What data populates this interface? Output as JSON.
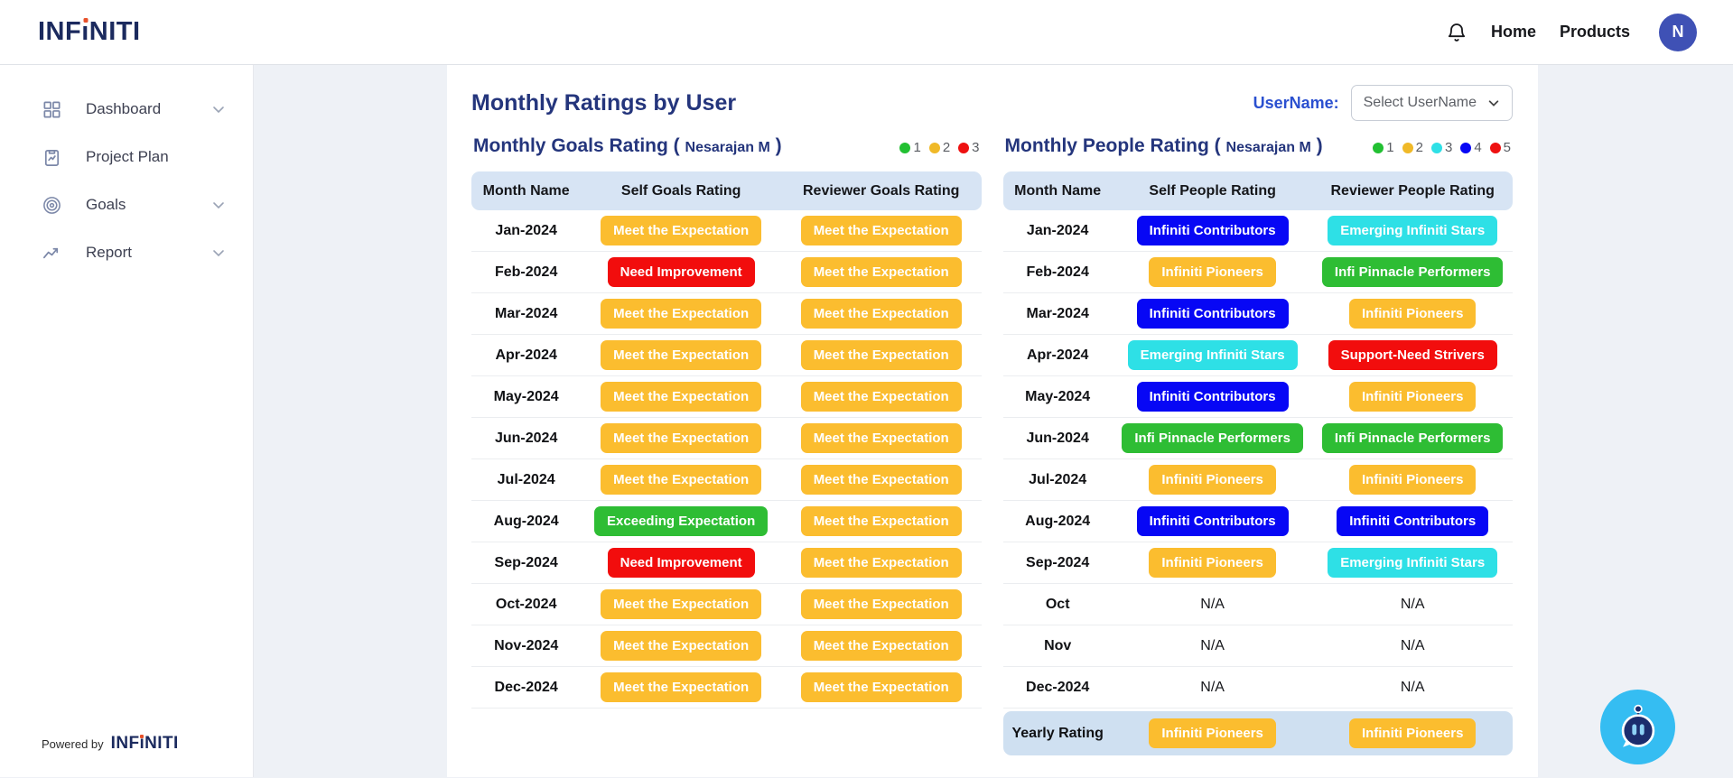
{
  "header": {
    "logo_pre": "INF",
    "logo_i": "ı",
    "logo_post": "NITI",
    "nav": [
      {
        "label": "Home"
      },
      {
        "label": "Products"
      }
    ],
    "avatar_initial": "N"
  },
  "sidebar": {
    "items": [
      {
        "label": "Dashboard",
        "icon": "dashboard-grid-icon",
        "has_chevron": true
      },
      {
        "label": "Project Plan",
        "icon": "project-plan-clipboard-icon",
        "has_chevron": false
      },
      {
        "label": "Goals",
        "icon": "goals-target-icon",
        "has_chevron": true
      },
      {
        "label": "Report",
        "icon": "report-trend-icon",
        "has_chevron": true
      }
    ],
    "footer": {
      "powered_by": "Powered by",
      "brand_pre": "INF",
      "brand_i": "ı",
      "brand_post": "NITI"
    }
  },
  "page": {
    "title": "Monthly Ratings by User",
    "username_label": "UserName:",
    "username_selected": "Select UserName"
  },
  "badge_colors": {
    "Meet the Expectation": "#fbbd2f",
    "Need Improvement": "#f20d0d",
    "Exceeding Expectation": "#2ebd34",
    "Infiniti Contributors": "#0707f5",
    "Emerging Infiniti Stars": "#2ee0e6",
    "Infiniti Pioneers": "#fbbd2f",
    "Infi Pinnacle Performers": "#2ebd34",
    "Support-Need Strivers": "#f20d0d"
  },
  "goals_table": {
    "title_open": "Monthly Goals Rating (",
    "user": "Nesarajan M",
    "title_close": ")",
    "legend": [
      {
        "color": "#22c032",
        "label": "1"
      },
      {
        "color": "#f0b928",
        "label": "2"
      },
      {
        "color": "#ee1111",
        "label": "3"
      }
    ],
    "columns": [
      "Month Name",
      "Self Goals Rating",
      "Reviewer Goals Rating"
    ],
    "rows": [
      {
        "month": "Jan-2024",
        "self": "Meet the Expectation",
        "reviewer": "Meet the Expectation"
      },
      {
        "month": "Feb-2024",
        "self": "Need Improvement",
        "reviewer": "Meet the Expectation"
      },
      {
        "month": "Mar-2024",
        "self": "Meet the Expectation",
        "reviewer": "Meet the Expectation"
      },
      {
        "month": "Apr-2024",
        "self": "Meet the Expectation",
        "reviewer": "Meet the Expectation"
      },
      {
        "month": "May-2024",
        "self": "Meet the Expectation",
        "reviewer": "Meet the Expectation"
      },
      {
        "month": "Jun-2024",
        "self": "Meet the Expectation",
        "reviewer": "Meet the Expectation"
      },
      {
        "month": "Jul-2024",
        "self": "Meet the Expectation",
        "reviewer": "Meet the Expectation"
      },
      {
        "month": "Aug-2024",
        "self": "Exceeding Expectation",
        "reviewer": "Meet the Expectation"
      },
      {
        "month": "Sep-2024",
        "self": "Need Improvement",
        "reviewer": "Meet the Expectation"
      },
      {
        "month": "Oct-2024",
        "self": "Meet the Expectation",
        "reviewer": "Meet the Expectation"
      },
      {
        "month": "Nov-2024",
        "self": "Meet the Expectation",
        "reviewer": "Meet the Expectation"
      },
      {
        "month": "Dec-2024",
        "self": "Meet the Expectation",
        "reviewer": "Meet the Expectation"
      }
    ]
  },
  "people_table": {
    "title_open": "Monthly People Rating (",
    "user": "Nesarajan M",
    "title_close": ")",
    "legend": [
      {
        "color": "#22c032",
        "label": "1"
      },
      {
        "color": "#f0b928",
        "label": "2"
      },
      {
        "color": "#2ee0e6",
        "label": "3"
      },
      {
        "color": "#0707f5",
        "label": "4"
      },
      {
        "color": "#ee1111",
        "label": "5"
      }
    ],
    "columns": [
      "Month Name",
      "Self People Rating",
      "Reviewer People Rating"
    ],
    "rows": [
      {
        "month": "Jan-2024",
        "self": "Infiniti Contributors",
        "reviewer": "Emerging Infiniti Stars"
      },
      {
        "month": "Feb-2024",
        "self": "Infiniti Pioneers",
        "reviewer": "Infi Pinnacle Performers"
      },
      {
        "month": "Mar-2024",
        "self": "Infiniti Contributors",
        "reviewer": "Infiniti Pioneers"
      },
      {
        "month": "Apr-2024",
        "self": "Emerging Infiniti Stars",
        "reviewer": "Support-Need Strivers"
      },
      {
        "month": "May-2024",
        "self": "Infiniti Contributors",
        "reviewer": "Infiniti Pioneers"
      },
      {
        "month": "Jun-2024",
        "self": "Infi Pinnacle Performers",
        "reviewer": "Infi Pinnacle Performers"
      },
      {
        "month": "Jul-2024",
        "self": "Infiniti Pioneers",
        "reviewer": "Infiniti Pioneers"
      },
      {
        "month": "Aug-2024",
        "self": "Infiniti Contributors",
        "reviewer": "Infiniti Contributors"
      },
      {
        "month": "Sep-2024",
        "self": "Infiniti Pioneers",
        "reviewer": "Emerging Infiniti Stars"
      },
      {
        "month": "Oct",
        "self": "N/A",
        "reviewer": "N/A"
      },
      {
        "month": "Nov",
        "self": "N/A",
        "reviewer": "N/A"
      },
      {
        "month": "Dec-2024",
        "self": "N/A",
        "reviewer": "N/A"
      }
    ],
    "yearly_rows": [
      {
        "month": "Yearly Rating",
        "self": "Infiniti Pioneers",
        "reviewer": "Infiniti Pioneers"
      }
    ]
  }
}
